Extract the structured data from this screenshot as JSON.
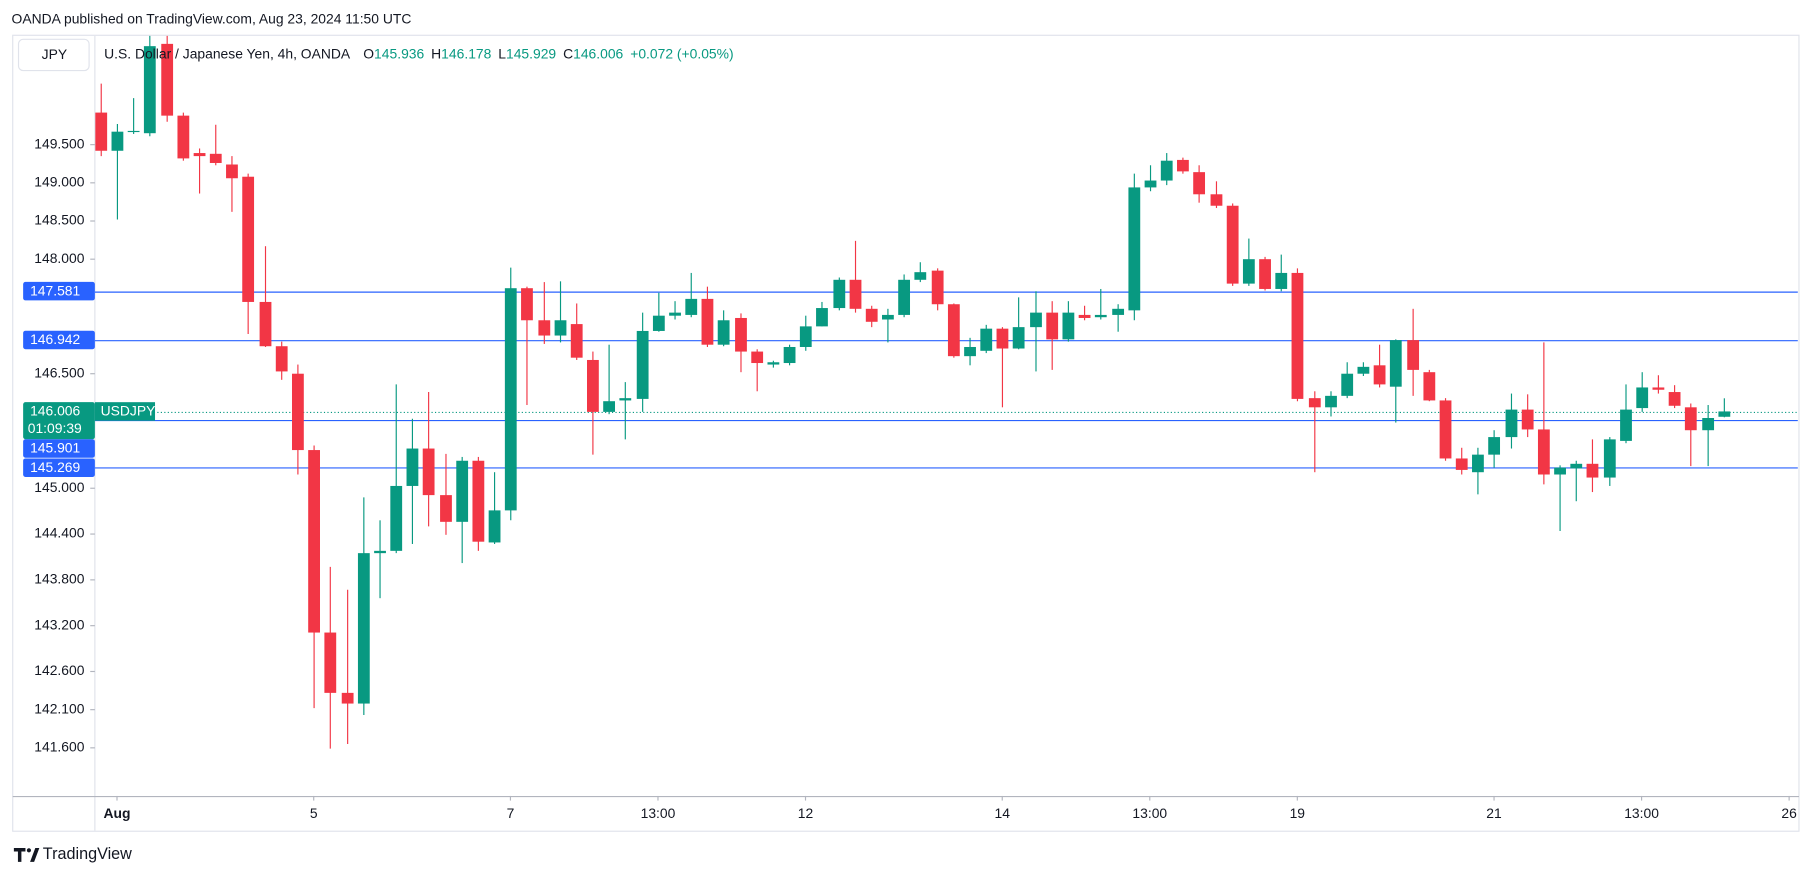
{
  "header": "OANDA published on TradingView.com, Aug 23, 2024 11:50 UTC",
  "footer": "TradingView",
  "chart_data": {
    "type": "candlestick",
    "currency": "JPY",
    "title": "U.S. Dollar / Japanese Yen, 4h, OANDA",
    "legend": [
      {
        "key": "O",
        "value": "145.936"
      },
      {
        "key": "H",
        "value": "146.178"
      },
      {
        "key": "L",
        "value": "145.929"
      },
      {
        "key": "C",
        "value": "146.006"
      }
    ],
    "change": "+0.072 (+0.05%)",
    "up_color": "#089981",
    "down_color": "#f23645",
    "open": [
      149.92,
      149.42,
      149.67,
      149.65,
      150.82,
      149.88,
      149.39,
      149.38,
      149.24,
      149.08,
      147.44,
      146.86,
      146.5,
      145.5,
      143.11,
      142.32,
      142.18,
      144.15,
      144.18,
      145.03,
      145.52,
      144.91,
      144.56,
      145.36,
      144.29,
      144.71,
      147.62,
      147.2,
      147.0,
      147.15,
      146.68,
      146.0,
      146.15,
      146.17,
      147.06,
      147.26,
      147.27,
      147.48,
      146.88,
      147.23,
      146.79,
      146.62,
      146.64,
      146.85,
      147.12,
      147.36,
      147.73,
      147.35,
      147.21,
      147.27,
      147.73,
      147.85,
      147.41,
      146.73,
      146.8,
      147.09,
      146.83,
      147.11,
      147.3,
      146.95,
      147.27,
      147.24,
      147.27,
      147.33,
      148.94,
      149.03,
      149.3,
      149.14,
      148.85,
      148.7,
      147.68,
      148.0,
      147.61,
      147.82,
      146.18,
      146.06,
      146.21,
      146.5,
      146.61,
      146.33,
      146.94,
      146.52,
      146.15,
      145.39,
      145.21,
      145.44,
      145.67,
      146.03,
      145.77,
      145.18,
      145.26,
      145.32,
      145.14,
      145.62,
      146.05,
      146.32,
      146.26,
      146.06,
      145.76,
      145.936
    ],
    "high": [
      150.3,
      149.77,
      150.11,
      150.94,
      150.94,
      149.92,
      149.45,
      149.76,
      149.35,
      149.12,
      148.17,
      146.92,
      146.62,
      145.56,
      143.97,
      143.67,
      144.88,
      144.58,
      146.36,
      145.91,
      146.26,
      145.45,
      145.41,
      145.41,
      145.21,
      147.89,
      147.64,
      147.7,
      147.71,
      147.42,
      146.79,
      146.88,
      146.39,
      147.3,
      147.56,
      147.45,
      147.82,
      147.64,
      147.33,
      147.29,
      146.82,
      146.67,
      146.88,
      147.26,
      147.44,
      147.76,
      148.24,
      147.39,
      147.35,
      147.8,
      147.96,
      147.88,
      147.42,
      146.97,
      147.14,
      147.11,
      147.5,
      147.58,
      147.45,
      147.45,
      147.39,
      147.61,
      147.41,
      149.12,
      149.23,
      149.39,
      149.33,
      149.23,
      149.02,
      148.73,
      148.27,
      148.03,
      148.06,
      147.88,
      146.27,
      146.27,
      146.65,
      146.65,
      146.88,
      146.95,
      147.35,
      146.55,
      146.18,
      145.53,
      145.53,
      145.76,
      146.24,
      146.23,
      146.91,
      145.3,
      145.36,
      145.64,
      145.67,
      146.36,
      146.52,
      146.48,
      146.35,
      146.11,
      146.09,
      146.178
    ],
    "low": [
      149.35,
      148.52,
      149.64,
      149.61,
      149.8,
      149.29,
      148.86,
      149.23,
      148.62,
      147.02,
      146.85,
      146.42,
      145.18,
      142.12,
      141.59,
      141.65,
      142.03,
      143.56,
      144.15,
      144.27,
      144.5,
      144.39,
      144.02,
      144.18,
      144.27,
      144.58,
      146.09,
      146.89,
      146.91,
      146.68,
      145.44,
      145.97,
      145.64,
      146.0,
      147.05,
      147.21,
      147.24,
      146.85,
      146.86,
      146.52,
      146.27,
      146.58,
      146.61,
      146.8,
      147.12,
      147.33,
      147.3,
      147.11,
      146.91,
      147.24,
      147.7,
      147.33,
      146.71,
      146.61,
      146.77,
      146.06,
      146.82,
      146.53,
      146.55,
      146.92,
      147.2,
      147.21,
      147.05,
      147.2,
      148.89,
      148.97,
      149.12,
      148.74,
      148.67,
      147.65,
      147.65,
      147.59,
      147.58,
      146.14,
      145.21,
      145.94,
      146.18,
      146.47,
      146.32,
      145.86,
      146.21,
      146.14,
      145.36,
      145.18,
      144.92,
      145.27,
      145.52,
      145.67,
      145.05,
      144.44,
      144.83,
      144.95,
      145.03,
      145.59,
      146.0,
      146.24,
      146.05,
      145.29,
      145.29,
      145.929
    ],
    "close": [
      149.42,
      149.67,
      149.68,
      150.79,
      149.88,
      149.32,
      149.35,
      149.26,
      149.06,
      147.44,
      146.86,
      146.53,
      145.5,
      143.11,
      142.32,
      142.18,
      144.15,
      144.18,
      145.03,
      145.52,
      144.91,
      144.56,
      145.36,
      144.3,
      144.71,
      147.62,
      147.2,
      147.0,
      147.2,
      146.71,
      146.0,
      146.14,
      146.18,
      147.06,
      147.26,
      147.3,
      147.48,
      146.88,
      147.2,
      146.79,
      146.64,
      146.65,
      146.85,
      147.12,
      147.36,
      147.73,
      147.35,
      147.18,
      147.27,
      147.73,
      147.83,
      147.41,
      146.73,
      146.85,
      147.09,
      146.83,
      147.11,
      147.3,
      146.95,
      147.3,
      147.23,
      147.27,
      147.35,
      148.94,
      149.03,
      149.29,
      149.15,
      148.85,
      148.7,
      147.68,
      148.0,
      147.61,
      147.82,
      146.17,
      146.06,
      146.21,
      146.5,
      146.59,
      146.36,
      146.94,
      146.55,
      146.15,
      145.39,
      145.24,
      145.44,
      145.67,
      146.03,
      145.77,
      145.18,
      145.27,
      145.32,
      145.14,
      145.64,
      146.03,
      146.32,
      146.29,
      146.08,
      145.76,
      145.92,
      146.006
    ],
    "xlim": [
      -0.35,
      103.6
    ],
    "xticks": [
      {
        "value": 1,
        "label": "Aug"
      },
      {
        "value": 13,
        "label": "5"
      },
      {
        "value": 25,
        "label": "7"
      },
      {
        "value": 34,
        "label": "13:00"
      },
      {
        "value": 43,
        "label": "12"
      },
      {
        "value": 55,
        "label": "14"
      },
      {
        "value": 64,
        "label": "13:00"
      },
      {
        "value": 73,
        "label": "19"
      },
      {
        "value": 85,
        "label": "21"
      },
      {
        "value": 94,
        "label": "13:00"
      },
      {
        "value": 103,
        "label": "26"
      }
    ],
    "ylim": [
      140.97,
      150.94
    ],
    "yticks": [
      {
        "value": 149.5,
        "label": "149.500"
      },
      {
        "value": 149,
        "label": "149.000"
      },
      {
        "value": 148.5,
        "label": "148.500"
      },
      {
        "value": 148,
        "label": "148.000"
      },
      {
        "value": 146.5,
        "label": "146.500"
      },
      {
        "value": 145,
        "label": "145.000"
      },
      {
        "value": 144.4,
        "label": "144.400"
      },
      {
        "value": 143.8,
        "label": "143.800"
      },
      {
        "value": 143.2,
        "label": "143.200"
      },
      {
        "value": 142.6,
        "label": "142.600"
      },
      {
        "value": 142.1,
        "label": "142.100"
      },
      {
        "value": 141.6,
        "label": "141.600"
      }
    ],
    "grid": false,
    "price_lines": [
      147.581,
      146.942,
      145.901,
      145.269
    ],
    "price_line_color": "#2962ff",
    "last_price": 146.006,
    "symbol": "USDJPY",
    "countdown": "01:09:39"
  }
}
